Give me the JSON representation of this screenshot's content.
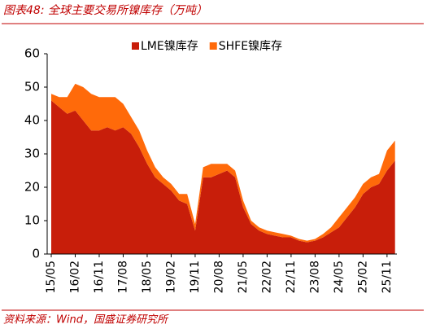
{
  "chart_data": {
    "type": "stacked-area",
    "title": "图表48:  全球主要交易所镍库存（万吨）",
    "source": "资料来源：Wind，国盛证券研究所",
    "categories": [
      "15/05",
      null,
      null,
      "16/02",
      null,
      null,
      "16/11",
      null,
      null,
      "17/08",
      null,
      null,
      "18/05",
      null,
      null,
      "19/02",
      null,
      null,
      "19/11",
      null,
      null,
      "20/08",
      null,
      null,
      "21/05",
      null,
      null,
      "22/02",
      null,
      null,
      "22/11",
      null,
      null,
      "23/08",
      null,
      null,
      "24/05",
      null,
      null,
      "25/02",
      null,
      null,
      "25/11",
      null
    ],
    "series": [
      {
        "name": "LME镍库存",
        "color": "#c81e0a",
        "values": [
          46,
          44,
          42,
          43,
          40,
          37,
          37,
          38,
          37,
          38,
          36,
          32,
          27,
          23,
          21,
          19,
          16,
          15,
          7,
          23,
          23,
          24,
          25,
          23,
          14,
          9,
          7,
          6,
          5.5,
          5,
          5,
          4,
          3.5,
          4,
          5,
          6.5,
          8,
          11,
          14,
          18,
          20,
          21,
          25,
          28
        ]
      },
      {
        "name": "SHFE镍库存",
        "color": "#ff6a0a",
        "values": [
          2,
          3,
          5,
          8,
          10,
          11,
          10,
          9,
          10,
          7,
          5,
          5,
          4,
          3,
          2,
          2,
          2,
          3,
          2,
          3,
          4,
          3,
          2,
          2,
          2,
          1,
          1,
          1,
          1,
          1,
          0.5,
          0.5,
          0.5,
          0.5,
          1,
          1.5,
          3,
          3,
          3,
          3,
          3,
          3,
          6,
          6
        ]
      }
    ],
    "ylim": [
      0,
      60
    ],
    "yticks": [
      0,
      10,
      20,
      30,
      40,
      50,
      60
    ],
    "legend": "top"
  }
}
